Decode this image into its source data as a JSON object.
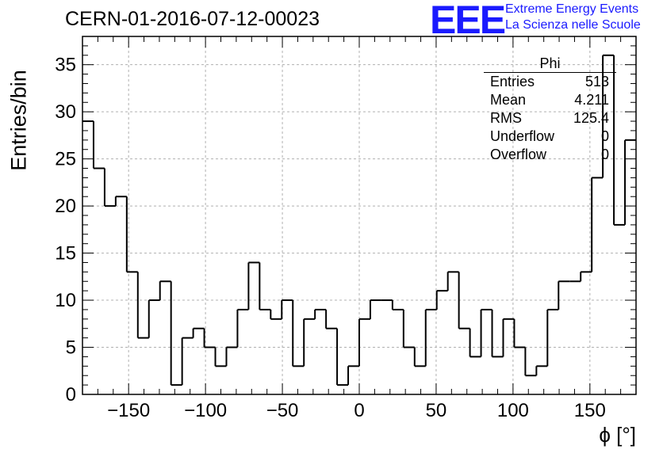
{
  "title": "CERN-01-2016-07-12-00023",
  "logo": {
    "mark": "EEE",
    "line1": "Extreme Energy Events",
    "line2": "La Scienza nelle Scuole"
  },
  "stats": {
    "name": "Phi",
    "rows": [
      {
        "label": "Entries",
        "value": "513"
      },
      {
        "label": "Mean",
        "value": "4.211"
      },
      {
        "label": "RMS",
        "value": "125.4"
      },
      {
        "label": "Underflow",
        "value": "0"
      },
      {
        "label": "Overflow",
        "value": "0"
      }
    ]
  },
  "chart_data": {
    "type": "bar",
    "style": "step-histogram",
    "xlabel": "ϕ [°]",
    "ylabel": "Entries/bin",
    "xlim": [
      -180,
      180
    ],
    "ylim": [
      0,
      38
    ],
    "bin_width": 7.2,
    "x_ticks": [
      -150,
      -100,
      -50,
      0,
      50,
      100,
      150
    ],
    "y_ticks": [
      0,
      5,
      10,
      15,
      20,
      25,
      30,
      35
    ],
    "grid": true,
    "values": [
      29,
      24,
      20,
      21,
      13,
      6,
      10,
      12,
      1,
      6,
      7,
      5,
      3,
      5,
      9,
      14,
      9,
      8,
      10,
      3,
      8,
      9,
      7,
      1,
      3,
      8,
      10,
      10,
      9,
      5,
      3,
      9,
      11,
      13,
      7,
      4,
      9,
      4,
      8,
      5,
      2,
      3,
      9,
      12,
      12,
      13,
      23,
      36,
      18,
      27
    ]
  }
}
